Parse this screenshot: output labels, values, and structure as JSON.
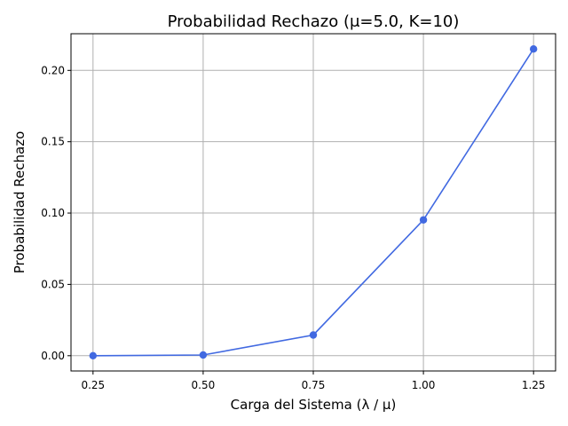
{
  "chart_data": {
    "type": "line",
    "title": "Probabilidad Rechazo (μ=5.0, K=10)",
    "xlabel": "Carga del Sistema (λ / μ)",
    "ylabel": "Probabilidad Rechazo",
    "x": [
      0.25,
      0.5,
      0.75,
      1.0,
      1.25
    ],
    "series": [
      {
        "values": [
          0.0,
          0.0005,
          0.0145,
          0.0952,
          0.215
        ]
      }
    ],
    "xticks": [
      "0.25",
      "0.50",
      "0.75",
      "1.00",
      "1.25"
    ],
    "yticks": [
      "0.00",
      "0.05",
      "0.10",
      "0.15",
      "0.20"
    ],
    "xlim": [
      0.2,
      1.3
    ],
    "ylim": [
      -0.0107,
      0.2257
    ],
    "grid": true,
    "line_color": "#4169e1"
  }
}
